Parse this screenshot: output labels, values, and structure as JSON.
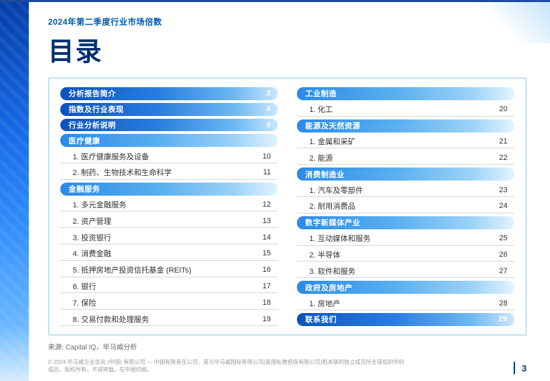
{
  "header": {
    "kicker": "2024年第二季度行业市场倍数",
    "title": "目录"
  },
  "colors": {
    "brand_dark": "#002f6c",
    "brand_mid": "#0059b3",
    "box_border": "#bfe0f7",
    "rule": "#d6d6d6"
  },
  "toc": {
    "left": [
      {
        "type": "lvl0",
        "label": "分析报告简介",
        "page": "2"
      },
      {
        "type": "lvl0",
        "label": "指数及行业表现",
        "page": "4"
      },
      {
        "type": "lvl0",
        "label": "行业分析说明",
        "page": "9"
      },
      {
        "type": "lvl1",
        "label": "医疗健康",
        "page": ""
      },
      {
        "type": "item",
        "label": "1. 医疗健康服务及设备",
        "page": "10"
      },
      {
        "type": "item",
        "label": "2. 制药、生物技术和生命科学",
        "page": "11"
      },
      {
        "type": "lvl1",
        "label": "金融服务",
        "page": ""
      },
      {
        "type": "item",
        "label": "1. 多元金融服务",
        "page": "12"
      },
      {
        "type": "item",
        "label": "2. 资产管理",
        "page": "13"
      },
      {
        "type": "item",
        "label": "3. 投资银行",
        "page": "14"
      },
      {
        "type": "item",
        "label": "4. 消费金融",
        "page": "15"
      },
      {
        "type": "item",
        "label": "5. 抵押房地产投资信托基金 (REITs)",
        "page": "16"
      },
      {
        "type": "item",
        "label": "6. 银行",
        "page": "17"
      },
      {
        "type": "item",
        "label": "7. 保险",
        "page": "18"
      },
      {
        "type": "item",
        "label": "8. 交易付款和处理服务",
        "page": "19"
      }
    ],
    "right": [
      {
        "type": "lvl1",
        "label": "工业制造",
        "page": ""
      },
      {
        "type": "item",
        "label": "1. 化工",
        "page": "20"
      },
      {
        "type": "lvl1",
        "label": "能源及天然资源",
        "page": ""
      },
      {
        "type": "item",
        "label": "1. 金属和采矿",
        "page": "21"
      },
      {
        "type": "item",
        "label": "2. 能源",
        "page": "22"
      },
      {
        "type": "lvl1",
        "label": "消费制造业",
        "page": ""
      },
      {
        "type": "item",
        "label": "1. 汽车及零部件",
        "page": "23"
      },
      {
        "type": "item",
        "label": "2. 耐用消费品",
        "page": "24"
      },
      {
        "type": "lvl1",
        "label": "数字新媒体产业",
        "page": ""
      },
      {
        "type": "item",
        "label": "1. 互动媒体和服务",
        "page": "25"
      },
      {
        "type": "item",
        "label": "2. 半导体",
        "page": "26"
      },
      {
        "type": "item",
        "label": "3. 软件和服务",
        "page": "27"
      },
      {
        "type": "lvl1",
        "label": "政府及房地产",
        "page": ""
      },
      {
        "type": "item",
        "label": "1. 房地产",
        "page": "28"
      },
      {
        "type": "lvl0",
        "label": "联系我们",
        "page": "29"
      }
    ]
  },
  "source": "来源: Capital IQ，毕马威分析",
  "footer": {
    "copyright": "© 2024 毕马威企业咨询 (中国) 有限公司 — 中国有限责任公司，是与毕马威国际有限公司(英国私营担保有限公司)相关联的独立成员所全球组织中的成员。版权所有，不得转载。在中国印刷。",
    "page": "3"
  }
}
